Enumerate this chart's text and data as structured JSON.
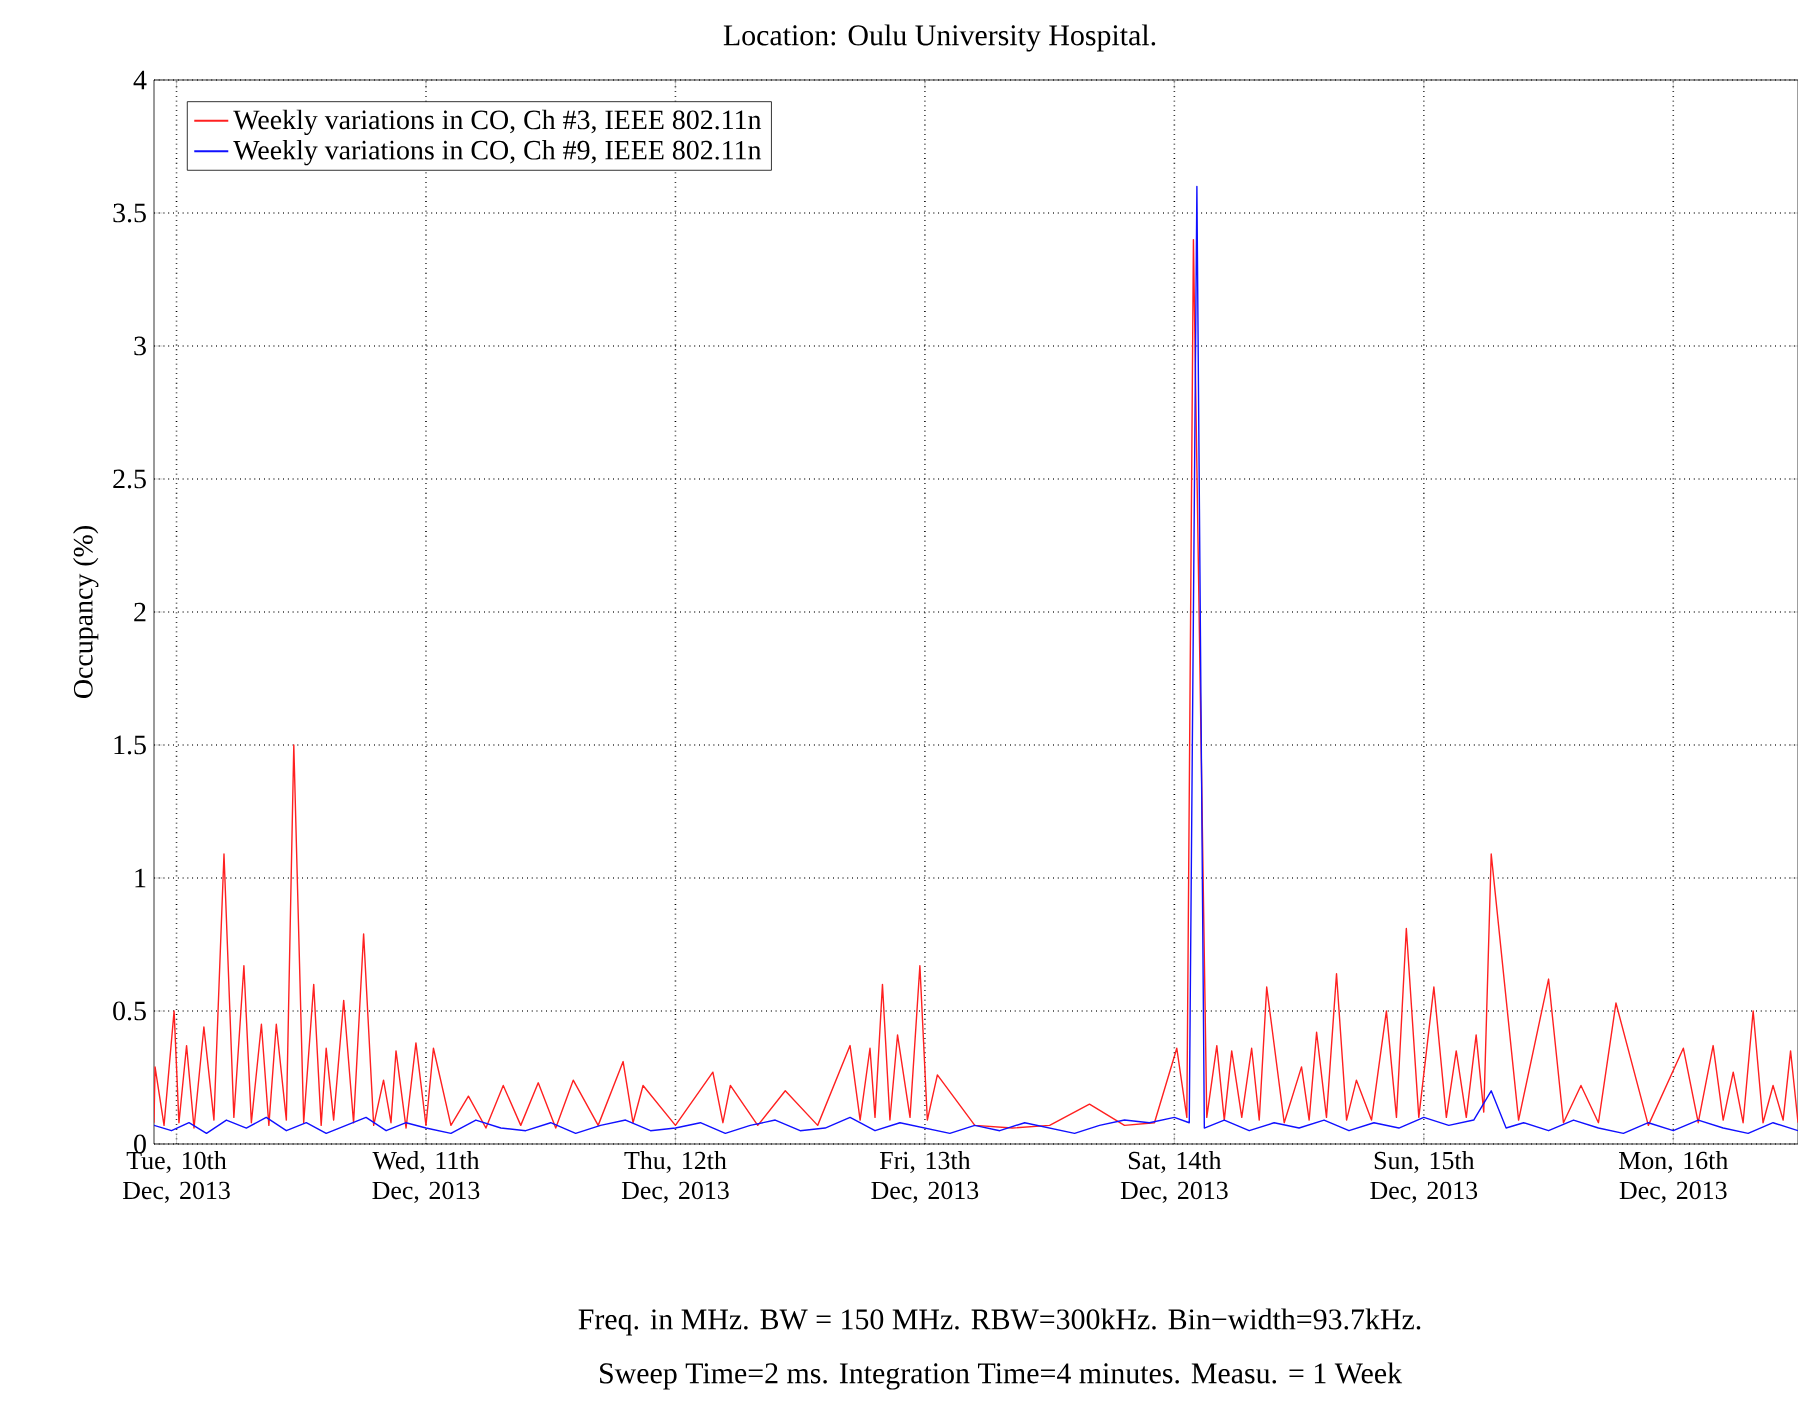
{
  "chart_data": {
    "type": "line",
    "title": "Location: Oulu University Hospital.",
    "ylabel": "Occupancy (%)",
    "annotations": [
      "Freq. in MHz. BW = 150 MHz. RBW=300kHz. Bin−width=93.7kHz.",
      "Sweep Time=2 ms. Integration Time=4 minutes. Measu. = 1 Week"
    ],
    "xlim": [
      "2013-12-09T21:50",
      "2013-12-16T12:00"
    ],
    "ylim": [
      0,
      4
    ],
    "xticks": [
      {
        "value": "2013-12-10",
        "label": "Tue, 10th Dec, 2013"
      },
      {
        "value": "2013-12-11",
        "label": "Wed, 11th Dec, 2013"
      },
      {
        "value": "2013-12-12",
        "label": "Thu, 12th Dec, 2013"
      },
      {
        "value": "2013-12-13",
        "label": "Fri, 13th Dec, 2013"
      },
      {
        "value": "2013-12-14",
        "label": "Sat, 14th Dec, 2013"
      },
      {
        "value": "2013-12-15",
        "label": "Sun, 15th Dec, 2013"
      },
      {
        "value": "2013-12-16",
        "label": "Mon, 16th Dec, 2013"
      }
    ],
    "yticks": [
      0,
      0.5,
      1,
      1.5,
      2,
      2.5,
      3,
      3.5,
      4
    ],
    "grid": true,
    "legend": "top left",
    "line_style": "solid",
    "marker": "none",
    "series": [
      {
        "name": "Weekly variations in CO, Ch #3, IEEE 802.11n",
        "color": "#ff2020",
        "x": [
          "2013-12-09T21:50",
          "2013-12-09T21:56",
          "2013-12-09T22:48",
          "2013-12-09T23:46",
          "2013-12-10T00:14",
          "2013-12-10T00:58",
          "2013-12-10T01:41",
          "2013-12-10T02:38",
          "2013-12-10T03:36",
          "2013-12-10T04:34",
          "2013-12-10T05:31",
          "2013-12-10T06:29",
          "2013-12-10T07:12",
          "2013-12-10T08:10",
          "2013-12-10T08:53",
          "2013-12-10T09:36",
          "2013-12-10T10:34",
          "2013-12-10T11:17",
          "2013-12-10T12:14",
          "2013-12-10T13:12",
          "2013-12-10T13:55",
          "2013-12-10T14:24",
          "2013-12-10T15:07",
          "2013-12-10T16:05",
          "2013-12-10T17:02",
          "2013-12-10T18:00",
          "2013-12-10T18:58",
          "2013-12-10T19:55",
          "2013-12-10T20:38",
          "2013-12-10T21:07",
          "2013-12-10T22:05",
          "2013-12-10T23:02",
          "2013-12-11T00:00",
          "2013-12-11T00:43",
          "2013-12-11T02:24",
          "2013-12-11T04:05",
          "2013-12-11T05:46",
          "2013-12-11T07:26",
          "2013-12-11T09:07",
          "2013-12-11T10:48",
          "2013-12-11T12:29",
          "2013-12-11T14:10",
          "2013-12-11T16:34",
          "2013-12-11T18:58",
          "2013-12-11T19:55",
          "2013-12-11T20:53",
          "2013-12-12T00:00",
          "2013-12-12T03:36",
          "2013-12-12T04:34",
          "2013-12-12T05:17",
          "2013-12-12T07:55",
          "2013-12-12T10:34",
          "2013-12-12T13:41",
          "2013-12-12T16:48",
          "2013-12-12T17:46",
          "2013-12-12T18:43",
          "2013-12-12T19:12",
          "2013-12-12T19:55",
          "2013-12-12T20:38",
          "2013-12-12T21:22",
          "2013-12-12T22:34",
          "2013-12-12T23:31",
          "2013-12-13T00:14",
          "2013-12-13T01:12",
          "2013-12-13T04:48",
          "2013-12-13T08:24",
          "2013-12-13T12:00",
          "2013-12-13T15:50",
          "2013-12-13T19:12",
          "2013-12-13T22:05",
          "2013-12-14T00:14",
          "2013-12-14T01:12",
          "2013-12-14T01:50",
          "2013-12-14T03:07",
          "2013-12-14T04:05",
          "2013-12-14T04:48",
          "2013-12-14T05:31",
          "2013-12-14T06:29",
          "2013-12-14T07:26",
          "2013-12-14T08:10",
          "2013-12-14T08:53",
          "2013-12-14T10:34",
          "2013-12-14T12:14",
          "2013-12-14T12:58",
          "2013-12-14T13:41",
          "2013-12-14T14:38",
          "2013-12-14T15:36",
          "2013-12-14T16:34",
          "2013-12-14T17:31",
          "2013-12-14T18:58",
          "2013-12-14T20:24",
          "2013-12-14T21:22",
          "2013-12-14T22:19",
          "2013-12-14T23:31",
          "2013-12-15T00:58",
          "2013-12-15T02:10",
          "2013-12-15T03:07",
          "2013-12-15T04:05",
          "2013-12-15T05:02",
          "2013-12-15T05:46",
          "2013-12-15T06:29",
          "2013-12-15T09:07",
          "2013-12-15T12:00",
          "2013-12-15T13:26",
          "2013-12-15T15:07",
          "2013-12-15T16:48",
          "2013-12-15T18:29",
          "2013-12-15T21:36",
          "2013-12-16T00:58",
          "2013-12-16T02:24",
          "2013-12-16T03:50",
          "2013-12-16T04:48",
          "2013-12-16T05:46",
          "2013-12-16T06:43",
          "2013-12-16T07:41",
          "2013-12-16T08:38",
          "2013-12-16T09:36",
          "2013-12-16T10:34",
          "2013-12-16T11:17",
          "2013-12-16T12:00"
        ],
        "values": [
          0.08,
          0.29,
          0.07,
          0.5,
          0.08,
          0.37,
          0.06,
          0.44,
          0.09,
          1.09,
          0.1,
          0.67,
          0.08,
          0.45,
          0.07,
          0.45,
          0.09,
          1.5,
          0.08,
          0.6,
          0.07,
          0.36,
          0.09,
          0.54,
          0.08,
          0.79,
          0.07,
          0.24,
          0.08,
          0.35,
          0.06,
          0.38,
          0.07,
          0.36,
          0.07,
          0.18,
          0.06,
          0.22,
          0.07,
          0.23,
          0.06,
          0.24,
          0.07,
          0.31,
          0.08,
          0.22,
          0.07,
          0.27,
          0.08,
          0.22,
          0.07,
          0.2,
          0.07,
          0.37,
          0.09,
          0.36,
          0.1,
          0.6,
          0.09,
          0.41,
          0.1,
          0.67,
          0.09,
          0.26,
          0.07,
          0.06,
          0.07,
          0.15,
          0.07,
          0.08,
          0.36,
          0.1,
          3.4,
          0.1,
          0.37,
          0.09,
          0.35,
          0.1,
          0.36,
          0.09,
          0.59,
          0.08,
          0.29,
          0.09,
          0.42,
          0.1,
          0.64,
          0.09,
          0.24,
          0.09,
          0.5,
          0.1,
          0.81,
          0.1,
          0.59,
          0.1,
          0.35,
          0.1,
          0.41,
          0.12,
          1.09,
          0.09,
          0.62,
          0.08,
          0.22,
          0.08,
          0.53,
          0.07,
          0.36,
          0.08,
          0.37,
          0.09,
          0.27,
          0.08,
          0.5,
          0.08,
          0.22,
          0.09,
          0.35,
          0.08
        ]
      },
      {
        "name": "Weekly variations in CO, Ch #9, IEEE 802.11n",
        "color": "#1010ff",
        "x": [
          "2013-12-09T21:50",
          "2013-12-09T23:31",
          "2013-12-10T01:12",
          "2013-12-10T02:53",
          "2013-12-10T04:48",
          "2013-12-10T06:43",
          "2013-12-10T08:38",
          "2013-12-10T10:34",
          "2013-12-10T12:29",
          "2013-12-10T14:24",
          "2013-12-10T16:19",
          "2013-12-10T18:14",
          "2013-12-10T20:10",
          "2013-12-10T22:05",
          "2013-12-11T00:00",
          "2013-12-11T02:24",
          "2013-12-11T04:48",
          "2013-12-11T07:12",
          "2013-12-11T09:36",
          "2013-12-11T12:00",
          "2013-12-11T14:24",
          "2013-12-11T16:48",
          "2013-12-11T19:12",
          "2013-12-11T21:36",
          "2013-12-12T00:00",
          "2013-12-12T02:24",
          "2013-12-12T04:48",
          "2013-12-12T07:12",
          "2013-12-12T09:36",
          "2013-12-12T12:00",
          "2013-12-12T14:24",
          "2013-12-12T16:48",
          "2013-12-12T19:12",
          "2013-12-12T21:36",
          "2013-12-13T00:00",
          "2013-12-13T02:24",
          "2013-12-13T04:48",
          "2013-12-13T07:12",
          "2013-12-13T09:36",
          "2013-12-13T12:00",
          "2013-12-13T14:24",
          "2013-12-13T16:48",
          "2013-12-13T19:12",
          "2013-12-13T21:36",
          "2013-12-14T00:00",
          "2013-12-14T01:26",
          "2013-12-14T02:10",
          "2013-12-14T02:53",
          "2013-12-14T04:48",
          "2013-12-14T07:12",
          "2013-12-14T09:36",
          "2013-12-14T12:00",
          "2013-12-14T14:24",
          "2013-12-14T16:48",
          "2013-12-14T19:12",
          "2013-12-14T21:36",
          "2013-12-15T00:00",
          "2013-12-15T02:24",
          "2013-12-15T04:48",
          "2013-12-15T06:29",
          "2013-12-15T07:55",
          "2013-12-15T09:36",
          "2013-12-15T12:00",
          "2013-12-15T14:24",
          "2013-12-15T16:48",
          "2013-12-15T19:12",
          "2013-12-15T21:36",
          "2013-12-16T00:00",
          "2013-12-16T02:24",
          "2013-12-16T04:48",
          "2013-12-16T07:12",
          "2013-12-16T09:36",
          "2013-12-16T12:00"
        ],
        "values": [
          0.07,
          0.05,
          0.08,
          0.04,
          0.09,
          0.06,
          0.1,
          0.05,
          0.08,
          0.04,
          0.07,
          0.1,
          0.05,
          0.08,
          0.06,
          0.04,
          0.09,
          0.06,
          0.05,
          0.08,
          0.04,
          0.07,
          0.09,
          0.05,
          0.06,
          0.08,
          0.04,
          0.07,
          0.09,
          0.05,
          0.06,
          0.1,
          0.05,
          0.08,
          0.06,
          0.04,
          0.07,
          0.05,
          0.08,
          0.06,
          0.04,
          0.07,
          0.09,
          0.08,
          0.1,
          0.08,
          3.6,
          0.06,
          0.09,
          0.05,
          0.08,
          0.06,
          0.09,
          0.05,
          0.08,
          0.06,
          0.1,
          0.07,
          0.09,
          0.2,
          0.06,
          0.08,
          0.05,
          0.09,
          0.06,
          0.04,
          0.08,
          0.05,
          0.09,
          0.06,
          0.04,
          0.08,
          0.05
        ]
      }
    ]
  }
}
